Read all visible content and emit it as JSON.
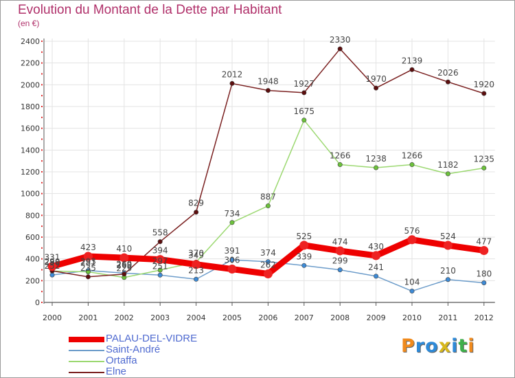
{
  "header": {
    "title": "Evolution du Montant de la Dette par Habitant",
    "subtitle": "(en €)"
  },
  "logo": {
    "text": "Proxiti"
  },
  "colors": {
    "title": "#b0306a",
    "legend_text": "#4f6ad0",
    "grid": "#e3e3e3",
    "axis": "#555555",
    "tick_marks": "#e03030"
  },
  "chart_data": {
    "type": "line",
    "title": "Evolution du Montant de la Dette par Habitant",
    "subtitle": "(en €)",
    "x": [
      "2000",
      "2001",
      "2002",
      "2003",
      "2004",
      "2005",
      "2006",
      "2007",
      "2008",
      "2009",
      "2010",
      "2011",
      "2012"
    ],
    "ylim": [
      0,
      2400
    ],
    "yticks": [
      0,
      200,
      400,
      600,
      800,
      1000,
      1200,
      1400,
      1600,
      1800,
      2000,
      2200,
      2400
    ],
    "grid": true,
    "legend_position": "bottom-left",
    "series": [
      {
        "name": "PALAU-DEL-VIDRE",
        "color": "#ee0000",
        "marker": "#ee2222",
        "thick": true,
        "values": [
          331,
          423,
          410,
          394,
          349,
          306,
          262,
          525,
          474,
          430,
          576,
          524,
          477
        ],
        "labels": [
          "331",
          "423",
          "410",
          "394",
          "349",
          "306",
          "262",
          "525",
          "474",
          "430",
          "576",
          "524",
          "477"
        ]
      },
      {
        "name": "Saint-André",
        "color": "#6c9cca",
        "marker": "#3d8ad6",
        "thick": false,
        "values": [
          252,
          293,
          269,
          251,
          213,
          391,
          374,
          339,
          299,
          241,
          104,
          210,
          180
        ],
        "labels": [
          "252",
          "293",
          "269",
          "251",
          "213",
          "391",
          "374",
          "339",
          "299",
          "241",
          "104",
          "210",
          "180"
        ]
      },
      {
        "name": "Ortaffa",
        "color": "#9bd870",
        "marker": "#6cc23b",
        "thick": false,
        "values": [
          288,
          281,
          229,
          297,
          370,
          734,
          887,
          1675,
          1266,
          1238,
          1266,
          1182,
          1235
        ],
        "labels": [
          "288",
          "281",
          "229",
          "297",
          "370",
          "734",
          "887",
          "1675",
          "1266",
          "1238",
          "1266",
          "1182",
          "1235"
        ]
      },
      {
        "name": "Elne",
        "color": "#7a2020",
        "marker": "#5c0e0e",
        "thick": false,
        "values": [
          290,
          235,
          260,
          558,
          829,
          2012,
          1948,
          1927,
          2330,
          1970,
          2139,
          2026,
          1920
        ],
        "labels": [
          "290",
          "235",
          "260",
          "558",
          "829",
          "2012",
          "1948",
          "1927",
          "2330",
          "1970",
          "2139",
          "2026",
          "1920"
        ]
      }
    ]
  }
}
